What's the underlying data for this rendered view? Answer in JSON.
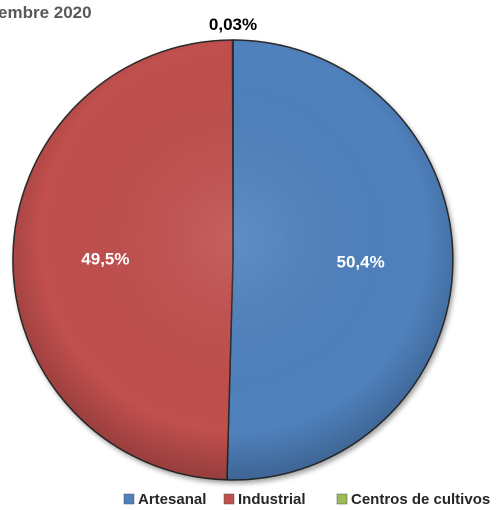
{
  "chart_data": {
    "type": "pie",
    "title": "embre 2020",
    "categories": [
      "Artesanal",
      "Industrial",
      "Centros de cultivos"
    ],
    "values": [
      50.4,
      49.5,
      0.03
    ],
    "data_labels": [
      "50,4%",
      "49,5%",
      "0,03%"
    ],
    "colors": [
      "#4f81bd",
      "#c0504d",
      "#9bbb59"
    ],
    "label_colors": [
      "#ffffff",
      "#ffffff",
      "#000000"
    ],
    "legend": {
      "position": "bottom",
      "items": [
        "Artesanal",
        "Industrial",
        "Centros de cultivos"
      ]
    }
  }
}
